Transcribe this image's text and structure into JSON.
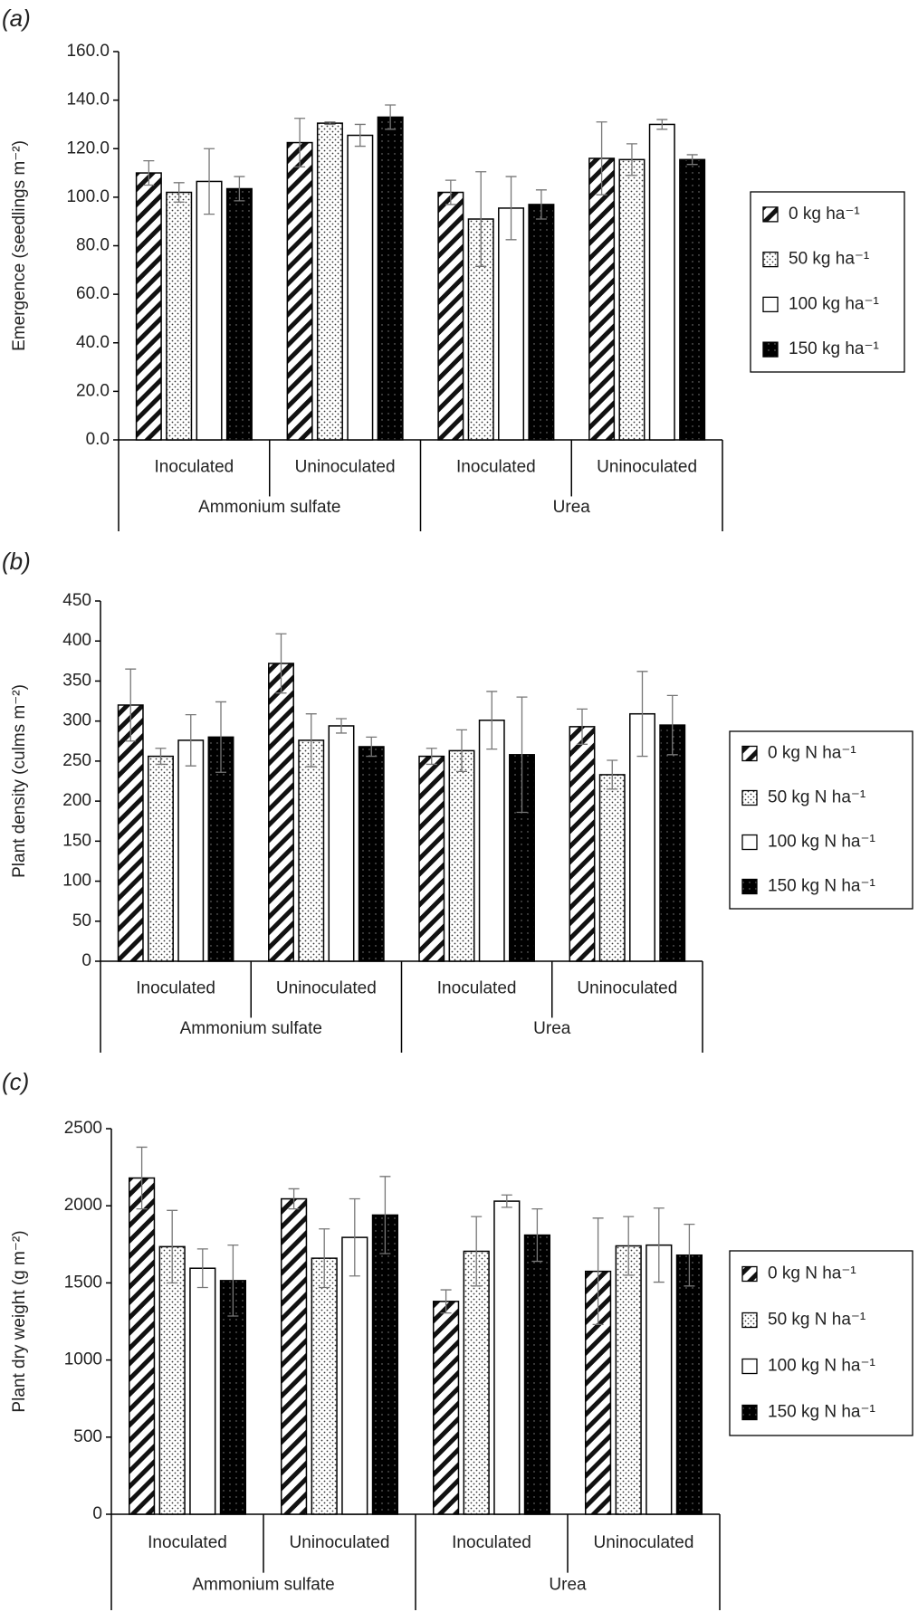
{
  "chart_data": [
    {
      "type": "bar",
      "panel_label": "(a)",
      "y_label": "Emergence (seedlings m⁻²)",
      "categories": [
        "Inoculated",
        "Uninoculated",
        "Inoculated",
        "Uninoculated"
      ],
      "groups": [
        "Ammonium sulfate",
        "Urea"
      ],
      "ylim": [
        0,
        160
      ],
      "yticks": [
        {
          "value": 0,
          "label": "0.0"
        },
        {
          "value": 20,
          "label": "20.0"
        },
        {
          "value": 40,
          "label": "40.0"
        },
        {
          "value": 60,
          "label": "60.0"
        },
        {
          "value": 80,
          "label": "80.0"
        },
        {
          "value": 100,
          "label": "100.0"
        },
        {
          "value": 120,
          "label": "120.0"
        },
        {
          "value": 140,
          "label": "140.0"
        },
        {
          "value": 160,
          "label": "160.0"
        }
      ],
      "series": [
        {
          "name": "0 kg ha⁻¹",
          "pattern": "hatch",
          "values": [
            110,
            122.5,
            102,
            116
          ],
          "errors": [
            5,
            10,
            5,
            15
          ]
        },
        {
          "name": "50 kg ha⁻¹",
          "pattern": "dots",
          "values": [
            102,
            130.5,
            91,
            115.5
          ],
          "errors": [
            4,
            0.5,
            19.5,
            6.5
          ]
        },
        {
          "name": "100 kg ha⁻¹",
          "pattern": "white",
          "values": [
            106.5,
            125.5,
            95.5,
            130
          ],
          "errors": [
            13.5,
            4.5,
            13,
            2
          ]
        },
        {
          "name": "150 kg ha⁻¹",
          "pattern": "black",
          "values": [
            103.5,
            133,
            97,
            115.5
          ],
          "errors": [
            5,
            5,
            6,
            2
          ]
        }
      ]
    },
    {
      "type": "bar",
      "panel_label": "(b)",
      "y_label": "Plant density (culms m⁻²)",
      "categories": [
        "Inoculated",
        "Uninoculated",
        "Inoculated",
        "Uninoculated"
      ],
      "groups": [
        "Ammonium sulfate",
        "Urea"
      ],
      "ylim": [
        0,
        450
      ],
      "yticks": [
        0,
        50,
        100,
        150,
        200,
        250,
        300,
        350,
        400,
        450
      ],
      "series": [
        {
          "name": "0 kg N ha⁻¹",
          "pattern": "hatch",
          "values": [
            320,
            372,
            256,
            293
          ],
          "errors": [
            45,
            37,
            10,
            22
          ]
        },
        {
          "name": "50 kg N ha⁻¹",
          "pattern": "dots",
          "values": [
            256,
            276,
            263,
            233
          ],
          "errors": [
            10,
            33,
            26,
            18
          ]
        },
        {
          "name": "100 kg N ha⁻¹",
          "pattern": "white",
          "values": [
            276,
            294,
            301,
            309
          ],
          "errors": [
            32,
            9,
            36,
            53
          ]
        },
        {
          "name": "150 kg N ha⁻¹",
          "pattern": "black",
          "values": [
            280,
            268,
            258,
            295
          ],
          "errors": [
            44,
            12,
            72,
            37
          ]
        }
      ]
    },
    {
      "type": "bar",
      "panel_label": "(c)",
      "y_label": "Plant dry weight (g m⁻²)",
      "categories": [
        "Inoculated",
        "Uninoculated",
        "Inoculated",
        "Uninoculated"
      ],
      "groups": [
        "Ammonium sulfate",
        "Urea"
      ],
      "ylim": [
        0,
        2500
      ],
      "yticks": [
        0,
        500,
        1000,
        1500,
        2000,
        2500
      ],
      "series": [
        {
          "name": "0 kg N ha⁻¹",
          "pattern": "hatch",
          "values": [
            2180,
            2045,
            1380,
            1575
          ],
          "errors": [
            200,
            65,
            75,
            345
          ]
        },
        {
          "name": "50 kg N ha⁻¹",
          "pattern": "dots",
          "values": [
            1735,
            1660,
            1705,
            1740
          ],
          "errors": [
            235,
            190,
            225,
            190
          ]
        },
        {
          "name": "100 kg N ha⁻¹",
          "pattern": "white",
          "values": [
            1595,
            1795,
            2030,
            1745
          ],
          "errors": [
            125,
            250,
            40,
            240
          ]
        },
        {
          "name": "150 kg N ha⁻¹",
          "pattern": "black",
          "values": [
            1515,
            1940,
            1810,
            1680
          ],
          "errors": [
            230,
            250,
            170,
            200
          ]
        }
      ]
    }
  ]
}
